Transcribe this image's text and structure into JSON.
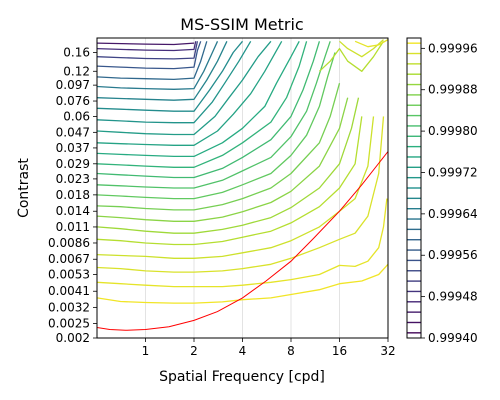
{
  "chart_data": {
    "type": "contour",
    "title": "MS-SSIM Metric",
    "xlabel": "Spatial Frequency [cpd]",
    "ylabel": "Contrast",
    "x_scale": "log2",
    "y_scale": "log",
    "xlim": [
      0.5,
      32
    ],
    "ylim": [
      0.002,
      0.2
    ],
    "x_ticks": [
      1,
      2,
      4,
      8,
      16,
      32
    ],
    "y_ticks": [
      0.002,
      0.0025,
      0.0032,
      0.0041,
      0.0053,
      0.0067,
      0.0086,
      0.011,
      0.014,
      0.018,
      0.023,
      0.029,
      0.037,
      0.047,
      0.06,
      0.076,
      0.097,
      0.12,
      0.16
    ],
    "colorbar": {
      "colormap": "viridis",
      "range": [
        0.9994,
        0.99998
      ],
      "ticks": [
        0.9994,
        0.99948,
        0.99956,
        0.99964,
        0.99972,
        0.9998,
        0.99988,
        0.99996
      ],
      "tick_labels": [
        "0.99940",
        "0.99948",
        "0.99956",
        "0.99964",
        "0.99972",
        "0.99980",
        "0.99988",
        "0.99996"
      ]
    },
    "contours": [
      {
        "level": 0.99997,
        "points": [
          [
            0.5,
            0.0037
          ],
          [
            0.7,
            0.0035
          ],
          [
            1,
            0.00345
          ],
          [
            1.5,
            0.00342
          ],
          [
            2,
            0.00342
          ],
          [
            3,
            0.00348
          ],
          [
            4,
            0.0036
          ],
          [
            6,
            0.0037
          ],
          [
            8,
            0.0039
          ],
          [
            12,
            0.0042
          ],
          [
            16,
            0.0046
          ],
          [
            22,
            0.0048
          ],
          [
            28,
            0.0053
          ],
          [
            32,
            0.0062
          ]
        ]
      },
      {
        "level": 0.99996,
        "points": [
          [
            0.5,
            0.0047
          ],
          [
            0.7,
            0.0046
          ],
          [
            1,
            0.0045
          ],
          [
            1.5,
            0.0044
          ],
          [
            2,
            0.0044
          ],
          [
            3,
            0.0044
          ],
          [
            4,
            0.0045
          ],
          [
            6,
            0.0047
          ],
          [
            8,
            0.0049
          ],
          [
            12,
            0.0053
          ],
          [
            16,
            0.0061
          ],
          [
            20,
            0.006
          ],
          [
            24,
            0.0065
          ],
          [
            28,
            0.008
          ],
          [
            30,
            0.011
          ],
          [
            31.5,
            0.017
          ]
        ]
      },
      {
        "level": 0.99995,
        "points": [
          [
            0.5,
            0.0059
          ],
          [
            0.7,
            0.0058
          ],
          [
            1,
            0.0056
          ],
          [
            1.5,
            0.0055
          ],
          [
            2,
            0.0055
          ],
          [
            3,
            0.0056
          ],
          [
            4,
            0.0058
          ],
          [
            6,
            0.0062
          ],
          [
            8,
            0.0068
          ],
          [
            12,
            0.008
          ],
          [
            16,
            0.0091
          ],
          [
            20,
            0.01
          ],
          [
            24,
            0.013
          ],
          [
            28,
            0.025
          ],
          [
            30,
            0.06
          ]
        ]
      },
      {
        "level": 0.99994,
        "points": [
          [
            0.5,
            0.0072
          ],
          [
            0.7,
            0.0071
          ],
          [
            1,
            0.007
          ],
          [
            1.5,
            0.0068
          ],
          [
            2,
            0.0068
          ],
          [
            3,
            0.007
          ],
          [
            4,
            0.0074
          ],
          [
            6,
            0.008
          ],
          [
            8,
            0.0089
          ],
          [
            12,
            0.011
          ],
          [
            16,
            0.014
          ],
          [
            20,
            0.017
          ],
          [
            24,
            0.028
          ],
          [
            26,
            0.06
          ]
        ]
      },
      {
        "level": 0.99992,
        "points": [
          [
            0.5,
            0.0091
          ],
          [
            0.7,
            0.0089
          ],
          [
            1,
            0.0086
          ],
          [
            1.5,
            0.0084
          ],
          [
            2,
            0.0084
          ],
          [
            3,
            0.0088
          ],
          [
            4,
            0.0094
          ],
          [
            6,
            0.0103
          ],
          [
            8,
            0.0117
          ],
          [
            12,
            0.015
          ],
          [
            16,
            0.02
          ],
          [
            20,
            0.029
          ],
          [
            22,
            0.06
          ]
        ]
      },
      {
        "level": 0.9999,
        "points": [
          [
            0.5,
            0.011
          ],
          [
            0.7,
            0.0107
          ],
          [
            1,
            0.0103
          ],
          [
            1.5,
            0.01
          ],
          [
            2,
            0.01
          ],
          [
            3,
            0.0106
          ],
          [
            4,
            0.0113
          ],
          [
            6,
            0.0127
          ],
          [
            8,
            0.0148
          ],
          [
            12,
            0.02
          ],
          [
            16,
            0.029
          ],
          [
            19,
            0.05
          ],
          [
            21,
            0.08
          ]
        ]
      },
      {
        "level": 0.99988,
        "points": [
          [
            0.5,
            0.013
          ],
          [
            0.7,
            0.0127
          ],
          [
            1,
            0.0123
          ],
          [
            1.5,
            0.012
          ],
          [
            2,
            0.012
          ],
          [
            3,
            0.0128
          ],
          [
            4,
            0.0139
          ],
          [
            6,
            0.016
          ],
          [
            8,
            0.019
          ],
          [
            12,
            0.028
          ],
          [
            16,
            0.05
          ],
          [
            18,
            0.08
          ]
        ]
      },
      {
        "level": 0.99986,
        "points": [
          [
            0.5,
            0.0152
          ],
          [
            0.7,
            0.015
          ],
          [
            1,
            0.0146
          ],
          [
            1.5,
            0.0143
          ],
          [
            2,
            0.0143
          ],
          [
            3,
            0.0155
          ],
          [
            4,
            0.017
          ],
          [
            6,
            0.02
          ],
          [
            8,
            0.025
          ],
          [
            12,
            0.04
          ],
          [
            14,
            0.06
          ],
          [
            16,
            0.1
          ]
        ]
      },
      {
        "level": 0.99984,
        "points": [
          [
            0.5,
            0.018
          ],
          [
            0.7,
            0.0177
          ],
          [
            1,
            0.0173
          ],
          [
            1.5,
            0.017
          ],
          [
            2,
            0.017
          ],
          [
            3,
            0.0187
          ],
          [
            4,
            0.021
          ],
          [
            6,
            0.025
          ],
          [
            8,
            0.033
          ],
          [
            10,
            0.045
          ],
          [
            12,
            0.07
          ],
          [
            13.5,
            0.11
          ],
          [
            15,
            0.16
          ]
        ]
      },
      {
        "level": 0.99982,
        "points": [
          [
            0.5,
            0.021
          ],
          [
            0.7,
            0.0207
          ],
          [
            1,
            0.0203
          ],
          [
            1.5,
            0.02
          ],
          [
            2,
            0.02
          ],
          [
            3,
            0.0225
          ],
          [
            4,
            0.026
          ],
          [
            6,
            0.032
          ],
          [
            8,
            0.044
          ],
          [
            10,
            0.065
          ],
          [
            11.5,
            0.1
          ],
          [
            13,
            0.15
          ],
          [
            14,
            0.19
          ]
        ]
      },
      {
        "level": 0.9998,
        "points": [
          [
            0.5,
            0.025
          ],
          [
            0.7,
            0.0245
          ],
          [
            1,
            0.024
          ],
          [
            1.5,
            0.0235
          ],
          [
            2,
            0.0235
          ],
          [
            3,
            0.027
          ],
          [
            4,
            0.032
          ],
          [
            6,
            0.042
          ],
          [
            8,
            0.06
          ],
          [
            9.5,
            0.09
          ],
          [
            11,
            0.14
          ],
          [
            12,
            0.19
          ]
        ]
      },
      {
        "level": 0.99978,
        "points": [
          [
            0.5,
            0.029
          ],
          [
            0.7,
            0.0285
          ],
          [
            1,
            0.028
          ],
          [
            1.5,
            0.0275
          ],
          [
            2,
            0.0275
          ],
          [
            3,
            0.033
          ],
          [
            4,
            0.04
          ],
          [
            6,
            0.055
          ],
          [
            7.5,
            0.08
          ],
          [
            9,
            0.13
          ],
          [
            10,
            0.19
          ]
        ]
      },
      {
        "level": 0.99976,
        "points": [
          [
            0.5,
            0.034
          ],
          [
            0.7,
            0.0335
          ],
          [
            1,
            0.033
          ],
          [
            1.5,
            0.0325
          ],
          [
            2,
            0.0325
          ],
          [
            3,
            0.04
          ],
          [
            4,
            0.05
          ],
          [
            5.5,
            0.07
          ],
          [
            6.5,
            0.1
          ],
          [
            8,
            0.15
          ],
          [
            9,
            0.19
          ]
        ]
      },
      {
        "level": 0.99974,
        "points": [
          [
            0.5,
            0.04
          ],
          [
            0.7,
            0.0395
          ],
          [
            1,
            0.039
          ],
          [
            1.5,
            0.0385
          ],
          [
            2,
            0.0385
          ],
          [
            2.8,
            0.048
          ],
          [
            3.5,
            0.062
          ],
          [
            4.5,
            0.085
          ],
          [
            5.5,
            0.12
          ],
          [
            7,
            0.19
          ]
        ]
      },
      {
        "level": 0.99972,
        "points": [
          [
            0.5,
            0.048
          ],
          [
            0.7,
            0.047
          ],
          [
            1,
            0.046
          ],
          [
            1.5,
            0.0455
          ],
          [
            2,
            0.0455
          ],
          [
            2.7,
            0.06
          ],
          [
            3.3,
            0.08
          ],
          [
            4,
            0.105
          ],
          [
            5,
            0.15
          ],
          [
            6,
            0.19
          ]
        ]
      },
      {
        "level": 0.9997,
        "points": [
          [
            0.5,
            0.057
          ],
          [
            0.7,
            0.056
          ],
          [
            1,
            0.055
          ],
          [
            1.5,
            0.0545
          ],
          [
            2,
            0.0545
          ],
          [
            2.6,
            0.075
          ],
          [
            3.1,
            0.1
          ],
          [
            3.8,
            0.14
          ],
          [
            4.5,
            0.19
          ]
        ]
      },
      {
        "level": 0.99968,
        "points": [
          [
            0.5,
            0.068
          ],
          [
            0.7,
            0.067
          ],
          [
            1,
            0.066
          ],
          [
            1.5,
            0.065
          ],
          [
            2,
            0.065
          ],
          [
            2.5,
            0.09
          ],
          [
            3,
            0.12
          ],
          [
            3.5,
            0.16
          ],
          [
            4,
            0.19
          ]
        ]
      },
      {
        "level": 0.99966,
        "points": [
          [
            0.5,
            0.08
          ],
          [
            0.7,
            0.079
          ],
          [
            1,
            0.078
          ],
          [
            1.5,
            0.077
          ],
          [
            2,
            0.078
          ],
          [
            2.4,
            0.105
          ],
          [
            2.8,
            0.14
          ],
          [
            3.2,
            0.19
          ]
        ]
      },
      {
        "level": 0.99964,
        "points": [
          [
            0.5,
            0.095
          ],
          [
            0.7,
            0.093
          ],
          [
            1,
            0.092
          ],
          [
            1.5,
            0.091
          ],
          [
            2,
            0.092
          ],
          [
            2.3,
            0.12
          ],
          [
            2.6,
            0.16
          ],
          [
            2.8,
            0.19
          ]
        ]
      },
      {
        "level": 0.9996,
        "points": [
          [
            0.5,
            0.11
          ],
          [
            0.7,
            0.108
          ],
          [
            1,
            0.107
          ],
          [
            1.5,
            0.106
          ],
          [
            2,
            0.108
          ],
          [
            2.2,
            0.14
          ],
          [
            2.4,
            0.19
          ]
        ]
      },
      {
        "level": 0.99956,
        "points": [
          [
            0.5,
            0.13
          ],
          [
            0.7,
            0.128
          ],
          [
            1,
            0.126
          ],
          [
            1.5,
            0.125
          ],
          [
            2,
            0.128
          ],
          [
            2.1,
            0.165
          ],
          [
            2.2,
            0.19
          ]
        ]
      },
      {
        "level": 0.99952,
        "points": [
          [
            0.5,
            0.15
          ],
          [
            0.7,
            0.148
          ],
          [
            1,
            0.146
          ],
          [
            1.5,
            0.145
          ],
          [
            2,
            0.147
          ],
          [
            2.1,
            0.19
          ]
        ]
      },
      {
        "level": 0.99948,
        "points": [
          [
            0.5,
            0.17
          ],
          [
            0.7,
            0.168
          ],
          [
            1,
            0.166
          ],
          [
            1.5,
            0.165
          ],
          [
            2,
            0.168
          ],
          [
            2.05,
            0.19
          ]
        ]
      },
      {
        "level": 0.99944,
        "points": [
          [
            0.5,
            0.185
          ],
          [
            1,
            0.182
          ],
          [
            1.5,
            0.181
          ],
          [
            2,
            0.185
          ]
        ]
      },
      {
        "level": 0.99992,
        "points": [
          [
            12,
            0.12
          ],
          [
            14,
            0.14
          ],
          [
            16,
            0.17
          ],
          [
            18,
            0.14
          ],
          [
            22,
            0.12
          ],
          [
            26,
            0.15
          ],
          [
            30,
            0.19
          ]
        ]
      },
      {
        "level": 0.99994,
        "points": [
          [
            16,
            0.19
          ],
          [
            18,
            0.17
          ],
          [
            22,
            0.15
          ],
          [
            26,
            0.17
          ],
          [
            30,
            0.195
          ]
        ]
      },
      {
        "level": 0.99996,
        "points": [
          [
            20,
            0.19
          ],
          [
            24,
            0.175
          ],
          [
            28,
            0.18
          ],
          [
            32,
            0.195
          ]
        ]
      }
    ],
    "threshold_line": {
      "color": "#ff0000",
      "points": [
        [
          0.5,
          0.00235
        ],
        [
          0.6,
          0.00228
        ],
        [
          0.75,
          0.00225
        ],
        [
          1,
          0.00228
        ],
        [
          1.4,
          0.00238
        ],
        [
          2,
          0.00262
        ],
        [
          2.8,
          0.003
        ],
        [
          4,
          0.0037
        ],
        [
          5.6,
          0.0048
        ],
        [
          8,
          0.0065
        ],
        [
          11,
          0.0092
        ],
        [
          16,
          0.014
        ],
        [
          22,
          0.021
        ],
        [
          32,
          0.035
        ]
      ]
    }
  }
}
